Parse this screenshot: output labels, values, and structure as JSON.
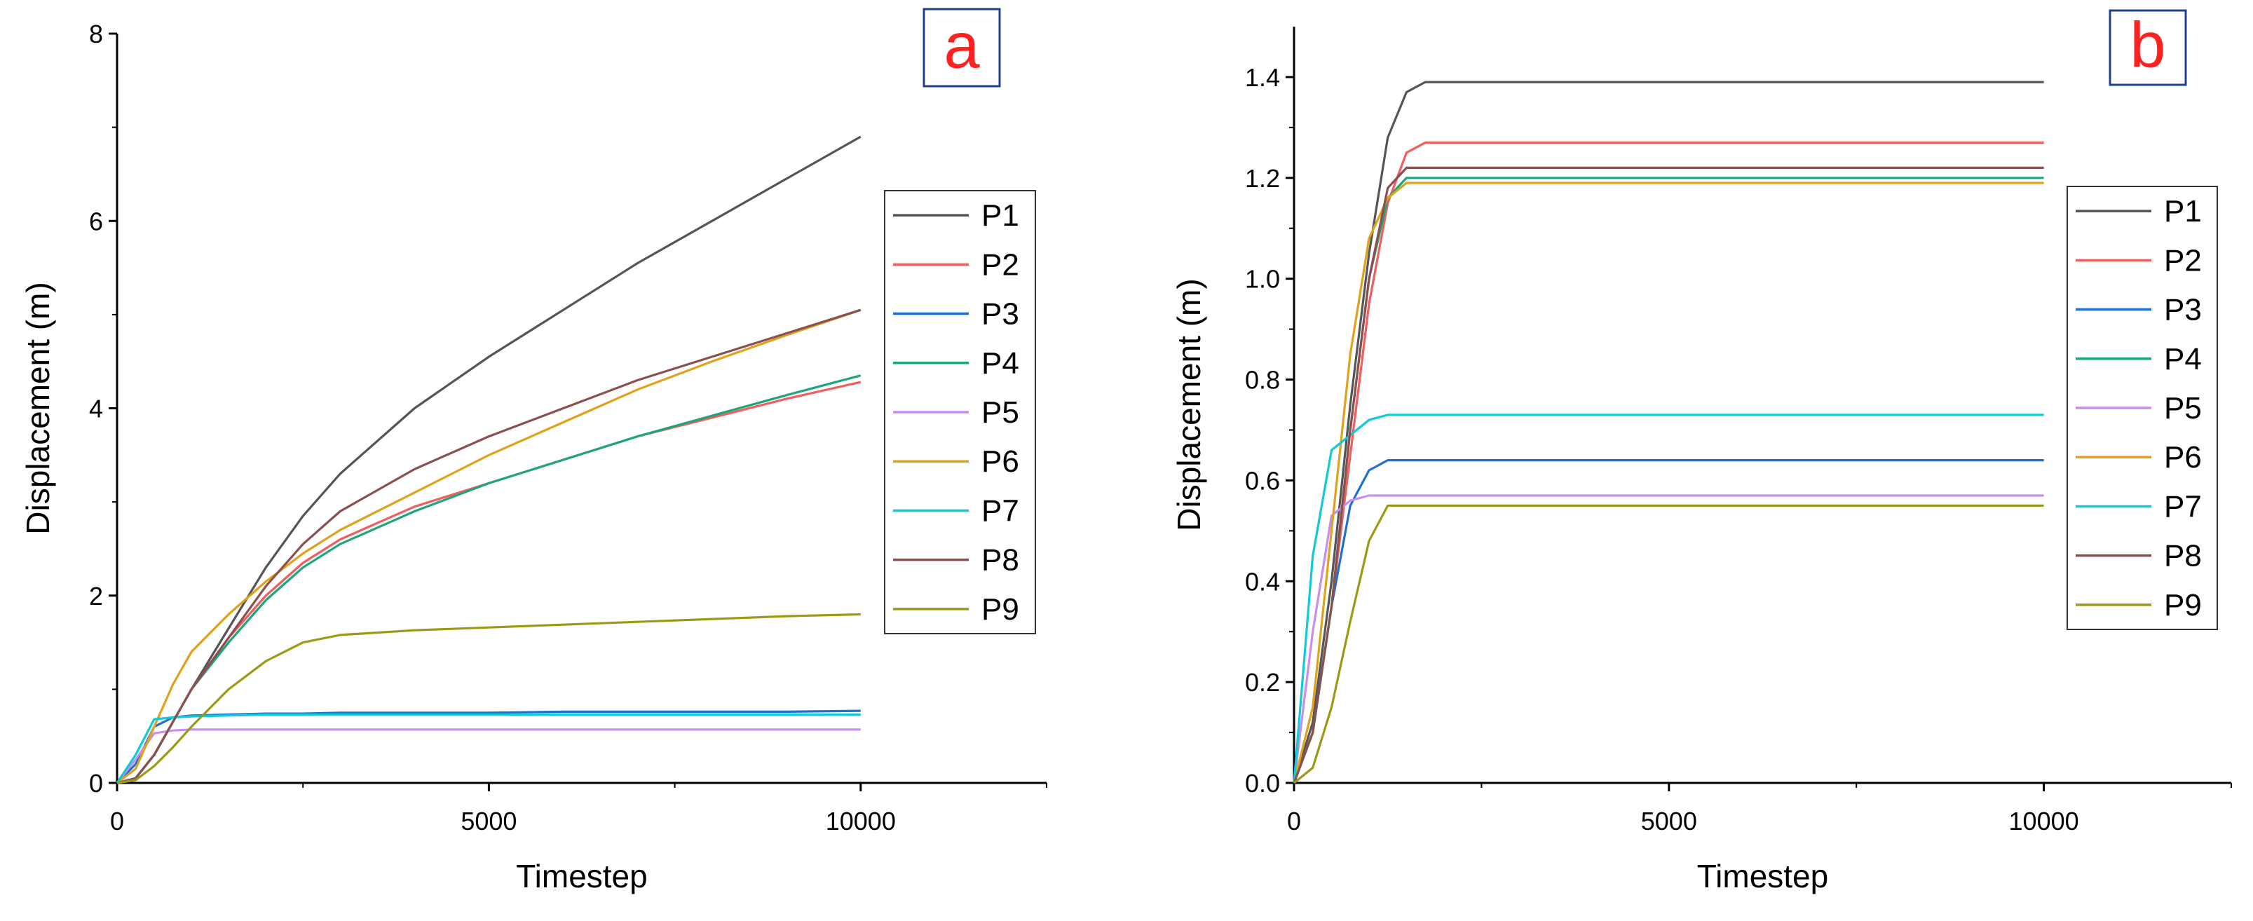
{
  "chart_data": [
    {
      "type": "line",
      "panel_label": "a",
      "xlabel": "Timestep",
      "ylabel": "Displacement (m)",
      "xlim": [
        0,
        12500
      ],
      "ylim": [
        0,
        8
      ],
      "x_ticks": [
        0,
        5000,
        10000
      ],
      "x_tick_labels": [
        "0",
        "5000",
        "10000"
      ],
      "y_ticks": [
        0,
        2,
        4,
        6,
        8
      ],
      "y_tick_labels": [
        "0",
        "2",
        "4",
        "6",
        "8"
      ],
      "grid": false,
      "legend_position": "right",
      "x": [
        0,
        250,
        500,
        750,
        1000,
        1500,
        2000,
        2500,
        3000,
        4000,
        5000,
        6000,
        7000,
        8000,
        9000,
        10000
      ],
      "series": [
        {
          "name": "P1",
          "color": "#555555",
          "values": [
            0,
            0.05,
            0.3,
            0.65,
            1.0,
            1.65,
            2.3,
            2.85,
            3.3,
            4.0,
            4.55,
            5.05,
            5.55,
            6.0,
            6.45,
            6.9
          ]
        },
        {
          "name": "P2",
          "color": "#f25d5d",
          "values": [
            0,
            0.05,
            0.3,
            0.65,
            1.0,
            1.55,
            2.0,
            2.35,
            2.6,
            2.95,
            3.2,
            3.45,
            3.7,
            3.9,
            4.1,
            4.28
          ]
        },
        {
          "name": "P3",
          "color": "#1f6fd1",
          "values": [
            0,
            0.2,
            0.6,
            0.7,
            0.72,
            0.73,
            0.74,
            0.74,
            0.75,
            0.75,
            0.75,
            0.76,
            0.76,
            0.76,
            0.76,
            0.77
          ]
        },
        {
          "name": "P4",
          "color": "#1ca67a",
          "values": [
            0,
            0.05,
            0.3,
            0.65,
            1.0,
            1.5,
            1.95,
            2.3,
            2.55,
            2.9,
            3.2,
            3.45,
            3.7,
            3.92,
            4.14,
            4.35
          ]
        },
        {
          "name": "P5",
          "color": "#c78ef0",
          "values": [
            0,
            0.25,
            0.53,
            0.56,
            0.57,
            0.57,
            0.57,
            0.57,
            0.57,
            0.57,
            0.57,
            0.57,
            0.57,
            0.57,
            0.57,
            0.57
          ]
        },
        {
          "name": "P6",
          "color": "#e0a21b",
          "values": [
            0,
            0.15,
            0.6,
            1.05,
            1.4,
            1.8,
            2.15,
            2.45,
            2.7,
            3.1,
            3.5,
            3.85,
            4.2,
            4.5,
            4.78,
            5.05
          ]
        },
        {
          "name": "P7",
          "color": "#12c9d6",
          "values": [
            0,
            0.3,
            0.68,
            0.7,
            0.71,
            0.72,
            0.73,
            0.73,
            0.73,
            0.73,
            0.73,
            0.73,
            0.73,
            0.73,
            0.73,
            0.73
          ]
        },
        {
          "name": "P8",
          "color": "#8a5050",
          "values": [
            0,
            0.05,
            0.3,
            0.65,
            1.0,
            1.55,
            2.1,
            2.55,
            2.9,
            3.35,
            3.7,
            4.0,
            4.3,
            4.55,
            4.8,
            5.05
          ]
        },
        {
          "name": "P9",
          "color": "#9a9a16",
          "values": [
            0,
            0.03,
            0.18,
            0.38,
            0.6,
            1.0,
            1.3,
            1.5,
            1.58,
            1.63,
            1.66,
            1.69,
            1.72,
            1.75,
            1.78,
            1.8
          ]
        }
      ]
    },
    {
      "type": "line",
      "panel_label": "b",
      "xlabel": "Timestep",
      "ylabel": "Displacement (m)",
      "xlim": [
        0,
        12500
      ],
      "ylim": [
        0,
        1.5
      ],
      "x_ticks": [
        0,
        5000,
        10000
      ],
      "x_tick_labels": [
        "0",
        "5000",
        "10000"
      ],
      "y_ticks": [
        0,
        0.2,
        0.4,
        0.6,
        0.8,
        1.0,
        1.2,
        1.4
      ],
      "y_tick_labels": [
        "0.0",
        "0.2",
        "0.4",
        "0.6",
        "0.8",
        "1.0",
        "1.2",
        "1.4"
      ],
      "grid": false,
      "legend_position": "right",
      "x": [
        0,
        250,
        500,
        750,
        1000,
        1250,
        1500,
        1750,
        2000,
        3000,
        5000,
        7500,
        10000
      ],
      "series": [
        {
          "name": "P1",
          "color": "#555555",
          "values": [
            0,
            0.12,
            0.4,
            0.75,
            1.05,
            1.28,
            1.37,
            1.39,
            1.39,
            1.39,
            1.39,
            1.39,
            1.39
          ]
        },
        {
          "name": "P2",
          "color": "#f25d5d",
          "values": [
            0,
            0.1,
            0.35,
            0.65,
            0.95,
            1.15,
            1.25,
            1.27,
            1.27,
            1.27,
            1.27,
            1.27,
            1.27
          ]
        },
        {
          "name": "P3",
          "color": "#1f6fd1",
          "values": [
            0,
            0.1,
            0.35,
            0.55,
            0.62,
            0.64,
            0.64,
            0.64,
            0.64,
            0.64,
            0.64,
            0.64,
            0.64
          ]
        },
        {
          "name": "P4",
          "color": "#1ca67a",
          "values": [
            0,
            0.1,
            0.35,
            0.7,
            1.0,
            1.16,
            1.2,
            1.2,
            1.2,
            1.2,
            1.2,
            1.2,
            1.2
          ]
        },
        {
          "name": "P5",
          "color": "#c78ef0",
          "values": [
            0,
            0.3,
            0.53,
            0.56,
            0.57,
            0.57,
            0.57,
            0.57,
            0.57,
            0.57,
            0.57,
            0.57,
            0.57
          ]
        },
        {
          "name": "P6",
          "color": "#e0a21b",
          "values": [
            0,
            0.15,
            0.5,
            0.85,
            1.08,
            1.16,
            1.19,
            1.19,
            1.19,
            1.19,
            1.19,
            1.19,
            1.19
          ]
        },
        {
          "name": "P7",
          "color": "#12c9d6",
          "values": [
            0,
            0.45,
            0.66,
            0.69,
            0.72,
            0.73,
            0.73,
            0.73,
            0.73,
            0.73,
            0.73,
            0.73,
            0.73
          ]
        },
        {
          "name": "P8",
          "color": "#8a5050",
          "values": [
            0,
            0.1,
            0.35,
            0.7,
            1.0,
            1.18,
            1.22,
            1.22,
            1.22,
            1.22,
            1.22,
            1.22,
            1.22
          ]
        },
        {
          "name": "P9",
          "color": "#9a9a16",
          "values": [
            0,
            0.03,
            0.15,
            0.32,
            0.48,
            0.55,
            0.55,
            0.55,
            0.55,
            0.55,
            0.55,
            0.55,
            0.55
          ]
        }
      ]
    }
  ]
}
